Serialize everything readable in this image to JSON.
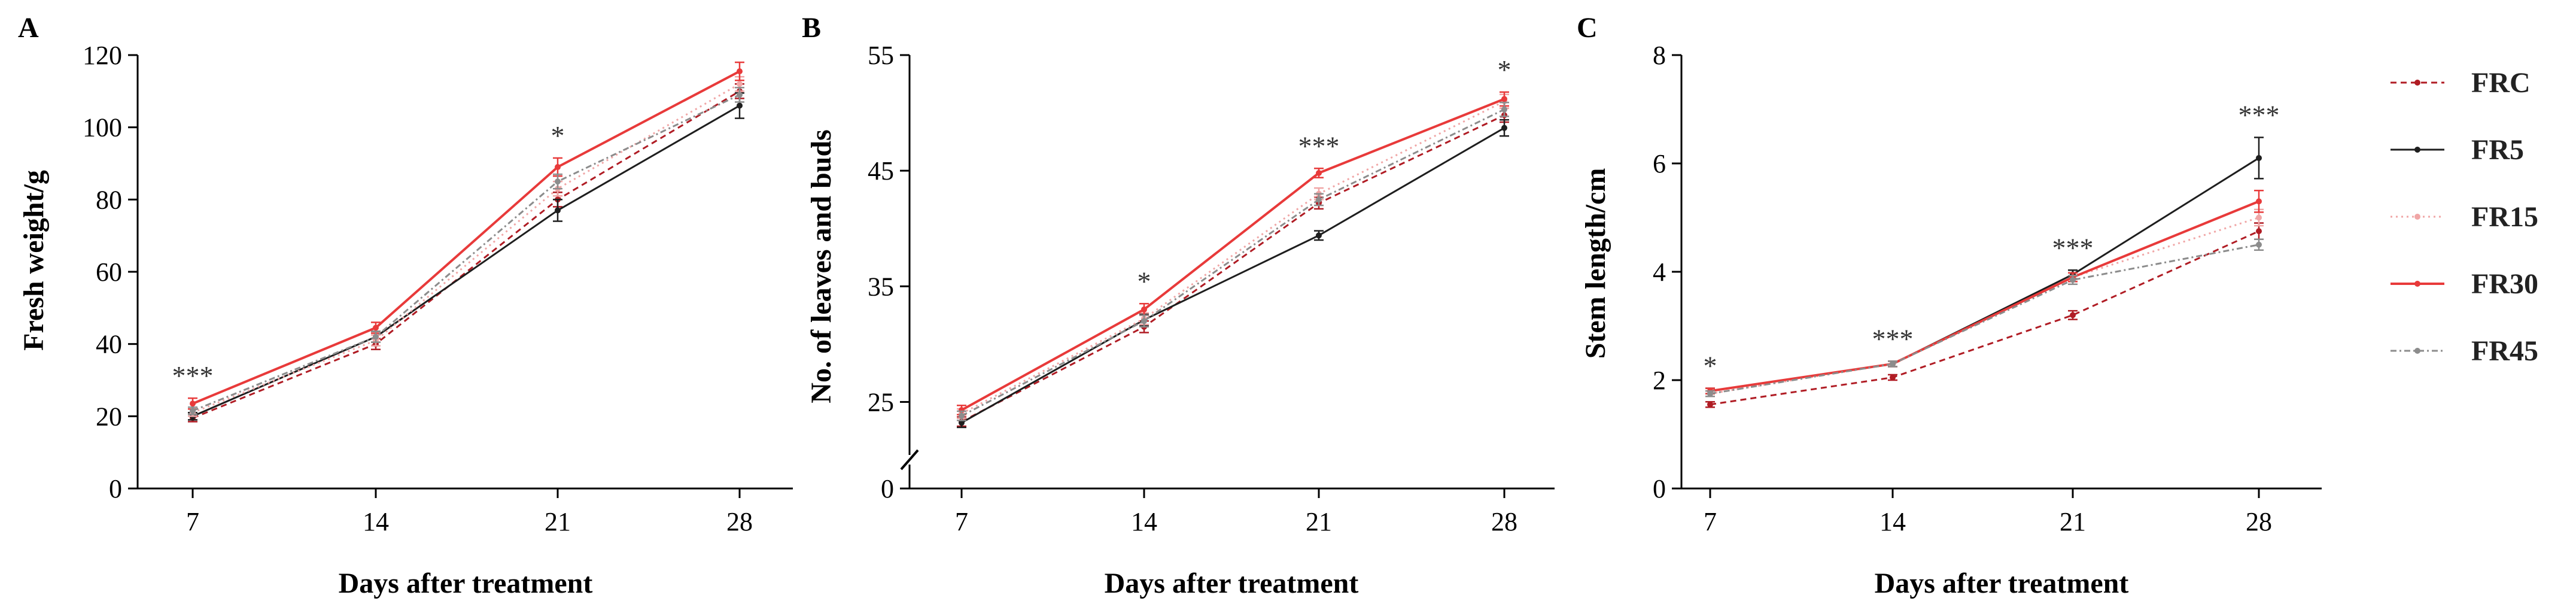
{
  "legend": {
    "series": [
      {
        "name": "FRC",
        "color": "#b01c24",
        "dash": "10,7",
        "width": 3
      },
      {
        "name": "FR5",
        "color": "#1e1e1e",
        "dash": "",
        "width": 3
      },
      {
        "name": "FR15",
        "color": "#f0a6a6",
        "dash": "3,6",
        "width": 3
      },
      {
        "name": "FR30",
        "color": "#e83a3a",
        "dash": "",
        "width": 4
      },
      {
        "name": "FR45",
        "color": "#8c8c8c",
        "dash": "10,5,3,5",
        "width": 3
      }
    ]
  },
  "chart_data": [
    {
      "panel": "A",
      "type": "line",
      "xlabel": "Days after treatment",
      "ylabel": "Fresh weight/g",
      "categories": [
        "7",
        "14",
        "21",
        "28"
      ],
      "ylim": [
        0,
        120
      ],
      "yticks": [
        0,
        20,
        40,
        60,
        80,
        100,
        120
      ],
      "axis_break": false,
      "significance": [
        "***",
        "",
        "*",
        ""
      ],
      "series": [
        {
          "name": "FRC",
          "values": [
            19.5,
            40,
            80,
            110
          ],
          "errors": [
            1,
            1.5,
            2,
            2
          ]
        },
        {
          "name": "FR5",
          "values": [
            20,
            42,
            77,
            106
          ],
          "errors": [
            1,
            1.5,
            3,
            3.5
          ]
        },
        {
          "name": "FR15",
          "values": [
            21,
            41,
            83,
            112
          ],
          "errors": [
            1,
            1.5,
            2,
            2
          ]
        },
        {
          "name": "FR30",
          "values": [
            23.5,
            44.5,
            89,
            115.5
          ],
          "errors": [
            1.5,
            1.5,
            2.5,
            2.5
          ]
        },
        {
          "name": "FR45",
          "values": [
            21.5,
            42,
            85,
            109
          ],
          "errors": [
            1,
            1.5,
            2,
            2
          ]
        }
      ]
    },
    {
      "panel": "B",
      "type": "line",
      "xlabel": "Days after treatment",
      "ylabel": "No. of leaves and buds",
      "categories": [
        "7",
        "14",
        "21",
        "28"
      ],
      "ylim": [
        0,
        55
      ],
      "yticks": [
        0,
        25,
        35,
        45,
        55
      ],
      "axis_break": true,
      "break_range": [
        0,
        20
      ],
      "significance": [
        "",
        "*",
        "***",
        "*"
      ],
      "series": [
        {
          "name": "FRC",
          "values": [
            23.3,
            31.5,
            42.2,
            49.8
          ],
          "errors": [
            0.4,
            0.5,
            0.5,
            0.6
          ]
        },
        {
          "name": "FR5",
          "values": [
            23.2,
            32.1,
            39.4,
            48.7
          ],
          "errors": [
            0.4,
            0.5,
            0.4,
            0.7
          ]
        },
        {
          "name": "FR15",
          "values": [
            24.0,
            32.2,
            43.0,
            51.0
          ],
          "errors": [
            0.4,
            0.5,
            0.5,
            0.6
          ]
        },
        {
          "name": "FR30",
          "values": [
            24.3,
            33.0,
            44.8,
            51.2
          ],
          "errors": [
            0.4,
            0.5,
            0.4,
            0.6
          ]
        },
        {
          "name": "FR45",
          "values": [
            23.8,
            32.0,
            42.5,
            50.3
          ],
          "errors": [
            0.4,
            0.5,
            0.5,
            0.6
          ]
        }
      ]
    },
    {
      "panel": "C",
      "type": "line",
      "xlabel": "Days after treatment",
      "ylabel": "Stem length/cm",
      "categories": [
        "7",
        "14",
        "21",
        "28"
      ],
      "ylim": [
        0,
        8
      ],
      "yticks": [
        0,
        2,
        4,
        6,
        8
      ],
      "axis_break": false,
      "significance": [
        "*",
        "***",
        "***",
        "***"
      ],
      "series": [
        {
          "name": "FRC",
          "values": [
            1.55,
            2.05,
            3.2,
            4.75
          ],
          "errors": [
            0.05,
            0.05,
            0.08,
            0.15
          ]
        },
        {
          "name": "FR5",
          "values": [
            1.8,
            2.3,
            3.95,
            6.1
          ],
          "errors": [
            0.05,
            0.05,
            0.08,
            0.38
          ]
        },
        {
          "name": "FR15",
          "values": [
            1.75,
            2.3,
            3.9,
            5.0
          ],
          "errors": [
            0.05,
            0.05,
            0.08,
            0.15
          ]
        },
        {
          "name": "FR30",
          "values": [
            1.8,
            2.3,
            3.9,
            5.3
          ],
          "errors": [
            0.05,
            0.05,
            0.08,
            0.2
          ]
        },
        {
          "name": "FR45",
          "values": [
            1.75,
            2.3,
            3.85,
            4.5
          ],
          "errors": [
            0.05,
            0.05,
            0.08,
            0.1
          ]
        }
      ]
    }
  ]
}
